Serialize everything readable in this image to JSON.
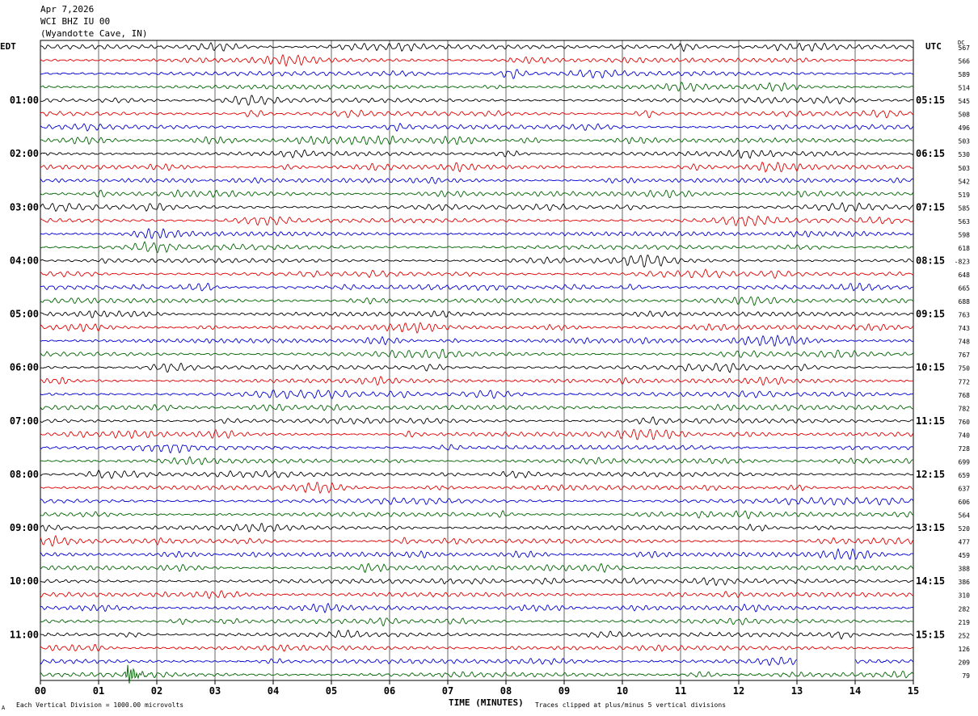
{
  "header": {
    "date": "Apr 7,2026",
    "station": "WCI BHZ IU 00",
    "location": "(Wyandotte Cave, IN)"
  },
  "labels": {
    "left_tz": "EDT",
    "right_tz": "UTC",
    "dc": "DC",
    "xlabel": "TIME (MINUTES)",
    "scale_note": "Each Vertical Division = 1000.00 microvolts",
    "clip_note": "Traces clipped at plus/minus 5 vertical divisions",
    "corner_mark": "A"
  },
  "colors": {
    "trace_cycle": [
      "#000000",
      "#e00000",
      "#0000d0",
      "#006400"
    ],
    "grid": "#000000"
  },
  "chart_data": {
    "type": "line",
    "description_kind": "helicorder seismogram",
    "x_ticks": [
      "00",
      "01",
      "02",
      "03",
      "04",
      "05",
      "06",
      "07",
      "08",
      "09",
      "10",
      "11",
      "12",
      "13",
      "14",
      "15"
    ],
    "xlim": [
      0,
      15
    ],
    "rows_per_hour": 4,
    "row_count": 48,
    "left_hour_labels": [
      "01:00",
      "02:00",
      "03:00",
      "04:00",
      "05:00",
      "06:00",
      "07:00",
      "08:00",
      "09:00",
      "10:00",
      "11:00"
    ],
    "right_hour_labels": [
      "05:15",
      "06:15",
      "07:15",
      "08:15",
      "09:15",
      "10:15",
      "11:15",
      "12:15",
      "13:15",
      "14:15",
      "15:15"
    ],
    "dc_values": [
      "567",
      "566",
      "589",
      "514",
      "545",
      "508",
      "496",
      "503",
      "530",
      "503",
      "542",
      "519",
      "585",
      "563",
      "598",
      "618",
      "-823",
      "648",
      "665",
      "688",
      "763",
      "743",
      "748",
      "767",
      "750",
      "772",
      "768",
      "782",
      "760",
      "740",
      "728",
      "699",
      "659",
      "637",
      "606",
      "564",
      "520",
      "477",
      "459",
      "388",
      "386",
      "310",
      "282",
      "219",
      "252",
      "126",
      "209",
      "79"
    ],
    "notable_event": {
      "row": 47,
      "minute": 1.5,
      "label": ""
    },
    "clipped_segment": {
      "row": 46,
      "start_minute": 13.0,
      "end_minute": 14.0
    }
  }
}
